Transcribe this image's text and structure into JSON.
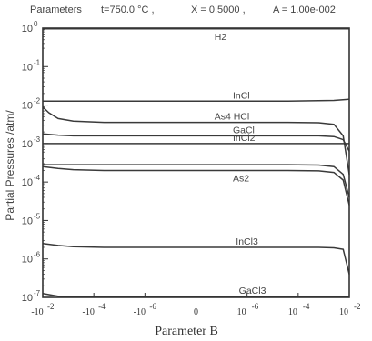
{
  "chart_data": {
    "type": "line",
    "header": {
      "label": "Parameters",
      "t": "t=750.0 °C ,",
      "x": "X = 0.5000 ,",
      "a": "A = 1.00e-002"
    },
    "xlabel": "Parameter   B",
    "ylabel": "Partial Pressures /atm/",
    "x_tick_labels": [
      "-10",
      "-10",
      "-10",
      "0",
      "10",
      "10",
      "10"
    ],
    "x_tick_exponents": [
      "-2",
      "-4",
      "-6",
      "",
      "-6",
      "-4",
      "-2"
    ],
    "y_tick_labels": [
      "10",
      "10",
      "10",
      "10",
      "10",
      "10",
      "10",
      "10"
    ],
    "y_tick_exponents": [
      "0",
      "-1",
      "-2",
      "-3",
      "-4",
      "-5",
      "-6",
      "-7"
    ],
    "ylim": [
      -7,
      0
    ],
    "y_log_scale": true,
    "series": [
      {
        "name": "H2",
        "x": [
          0,
          0.05,
          0.2,
          0.5,
          0.8,
          0.95,
          1.0
        ],
        "y": [
          -0.02,
          -0.02,
          -0.02,
          -0.02,
          -0.02,
          -0.02,
          -0.02
        ]
      },
      {
        "name": "InCl",
        "x": [
          0,
          0.05,
          0.2,
          0.5,
          0.8,
          0.95,
          1.0
        ],
        "y": [
          -1.9,
          -1.9,
          -1.9,
          -1.9,
          -1.9,
          -1.88,
          -1.85
        ]
      },
      {
        "name": "As4 HCl",
        "x": [
          0,
          0.02,
          0.05,
          0.1,
          0.2,
          0.5,
          0.8,
          0.9,
          0.95,
          0.98,
          1.0
        ],
        "y": [
          -2.05,
          -2.2,
          -2.35,
          -2.42,
          -2.45,
          -2.45,
          -2.45,
          -2.46,
          -2.5,
          -2.8,
          -3.8
        ]
      },
      {
        "name": "GaCl",
        "x": [
          0,
          0.05,
          0.1,
          0.2,
          0.5,
          0.8,
          0.9,
          0.95,
          0.98,
          1.0
        ],
        "y": [
          -2.75,
          -2.78,
          -2.8,
          -2.8,
          -2.8,
          -2.8,
          -2.8,
          -2.82,
          -2.9,
          -3.2
        ]
      },
      {
        "name": "InCl2",
        "x": [
          0,
          0.05,
          0.2,
          0.5,
          0.8,
          0.95,
          1.0
        ],
        "y": [
          -3.0,
          -3.0,
          -3.0,
          -3.0,
          -3.0,
          -3.0,
          -3.0
        ]
      },
      {
        "name": "",
        "x": [
          0,
          0.05,
          0.2,
          0.5,
          0.8,
          0.9,
          0.95,
          0.98,
          1.0
        ],
        "y": [
          -3.55,
          -3.55,
          -3.55,
          -3.55,
          -3.55,
          -3.56,
          -3.6,
          -3.8,
          -4.4
        ]
      },
      {
        "name": "As2",
        "x": [
          0,
          0.05,
          0.1,
          0.2,
          0.5,
          0.8,
          0.9,
          0.95,
          0.98,
          1.0
        ],
        "y": [
          -3.6,
          -3.65,
          -3.68,
          -3.7,
          -3.7,
          -3.7,
          -3.71,
          -3.75,
          -3.95,
          -4.6
        ]
      },
      {
        "name": "InCl3",
        "x": [
          0,
          0.05,
          0.1,
          0.2,
          0.5,
          0.8,
          0.9,
          0.95,
          0.98,
          1.0
        ],
        "y": [
          -5.6,
          -5.65,
          -5.68,
          -5.7,
          -5.7,
          -5.7,
          -5.7,
          -5.71,
          -5.75,
          -6.4
        ]
      },
      {
        "name": "GaCl3",
        "x": [
          0,
          0.05,
          0.1,
          0.2,
          0.5,
          0.8,
          0.95,
          1.0
        ],
        "y": [
          -6.9,
          -6.97,
          -6.98,
          -6.98,
          -6.98,
          -6.98,
          -6.98,
          -6.98
        ]
      }
    ]
  }
}
